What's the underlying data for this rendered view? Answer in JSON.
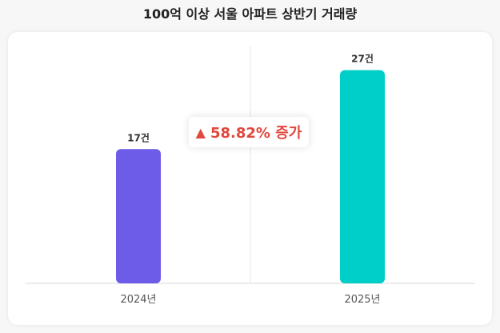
{
  "title": "100억 이상 서울 아파트 상반기 거래량",
  "chart_data": {
    "type": "bar",
    "title": "100억 이상 서울 아파트 상반기 거래량",
    "categories": [
      "2024년",
      "2025년"
    ],
    "values": [
      17,
      27
    ],
    "value_labels": [
      "17건",
      "27건"
    ],
    "ylim": [
      0,
      30
    ],
    "colors": [
      "#6C5CE7",
      "#00CEC9"
    ],
    "grid": false,
    "annotation": {
      "icon": "up-triangle-icon",
      "text": "58.82% 증가",
      "color": "#E0483E"
    }
  }
}
